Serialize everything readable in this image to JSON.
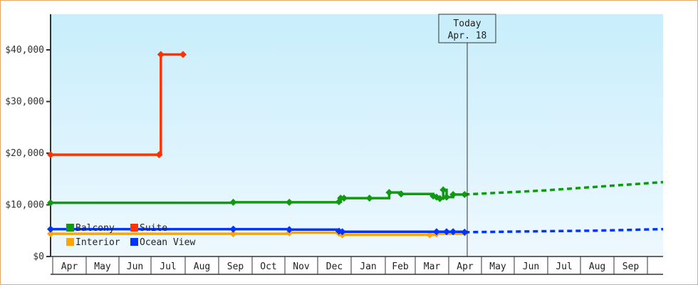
{
  "colors": {
    "balcony": "#119911",
    "suite": "#ff3300",
    "interior": "#ffa500",
    "ocean_view": "#0033ff",
    "axis": "#333333",
    "frame": "#e8a868",
    "plot_bg_top": "#c8eefc",
    "plot_bg_bottom": "#eef8fe"
  },
  "today": {
    "line1": "Today",
    "line2": "Apr. 18"
  },
  "legend": [
    {
      "key": "balcony",
      "label": "Balcony"
    },
    {
      "key": "suite",
      "label": "Suite"
    },
    {
      "key": "interior",
      "label": "Interior"
    },
    {
      "key": "ocean_view",
      "label": "Ocean View"
    }
  ],
  "chart_data": {
    "type": "line",
    "title": "",
    "xlabel": "",
    "ylabel": "",
    "ylim": [
      0,
      47000
    ],
    "y_ticks": [
      "$0",
      "$10,000",
      "$20,000",
      "$30,000",
      "$40,000"
    ],
    "y_tick_values": [
      0,
      10000,
      20000,
      30000,
      40000
    ],
    "x_ticks": [
      "Apr",
      "May",
      "Jun",
      "Jul",
      "Aug",
      "Sep",
      "Oct",
      "Nov",
      "Dec",
      "Jan",
      "Feb",
      "Mar",
      "Apr",
      "May",
      "Jun",
      "Jul",
      "Aug",
      "Sep"
    ],
    "grid": false,
    "legend_position": "lower-left inside plot",
    "today_marker": {
      "label": "Today Apr. 18",
      "x_month_index": 12.55
    },
    "series": [
      {
        "name": "Suite",
        "style": "step",
        "points": [
          [
            0,
            19700
          ],
          [
            3.3,
            19700
          ],
          [
            3.35,
            39100
          ],
          [
            4.0,
            39100
          ]
        ]
      },
      {
        "name": "Balcony",
        "style": "step",
        "points": [
          [
            0,
            10400
          ],
          [
            5.5,
            10500
          ],
          [
            7.2,
            10500
          ],
          [
            8.7,
            10600
          ],
          [
            8.75,
            11300
          ],
          [
            8.85,
            11300
          ],
          [
            9.6,
            11300
          ],
          [
            10.2,
            12400
          ],
          [
            10.6,
            12100
          ],
          [
            11.6,
            11700
          ],
          [
            11.7,
            11500
          ],
          [
            11.8,
            11200
          ],
          [
            11.9,
            12900
          ],
          [
            12.0,
            11500
          ],
          [
            12.2,
            12000
          ],
          [
            12.55,
            12000
          ]
        ],
        "forecast": [
          [
            12.55,
            12000
          ],
          [
            15.0,
            12800
          ],
          [
            17.0,
            13700
          ],
          [
            18.6,
            14400
          ]
        ]
      },
      {
        "name": "Interior",
        "style": "step",
        "points": [
          [
            0,
            4400
          ],
          [
            5.5,
            4400
          ],
          [
            7.2,
            4600
          ],
          [
            8.7,
            4500
          ],
          [
            8.8,
            4200
          ],
          [
            11.5,
            4200
          ],
          [
            11.7,
            4400
          ],
          [
            12.55,
            4600
          ]
        ]
      },
      {
        "name": "Ocean View",
        "style": "step",
        "points": [
          [
            0,
            5300
          ],
          [
            5.5,
            5300
          ],
          [
            7.2,
            5200
          ],
          [
            8.7,
            4900
          ],
          [
            8.8,
            4800
          ],
          [
            11.7,
            4800
          ],
          [
            12.0,
            4800
          ],
          [
            12.2,
            4800
          ],
          [
            12.55,
            4700
          ]
        ],
        "forecast": [
          [
            12.55,
            4700
          ],
          [
            15.0,
            4900
          ],
          [
            16.5,
            5000
          ],
          [
            18.6,
            5300
          ]
        ]
      }
    ]
  }
}
